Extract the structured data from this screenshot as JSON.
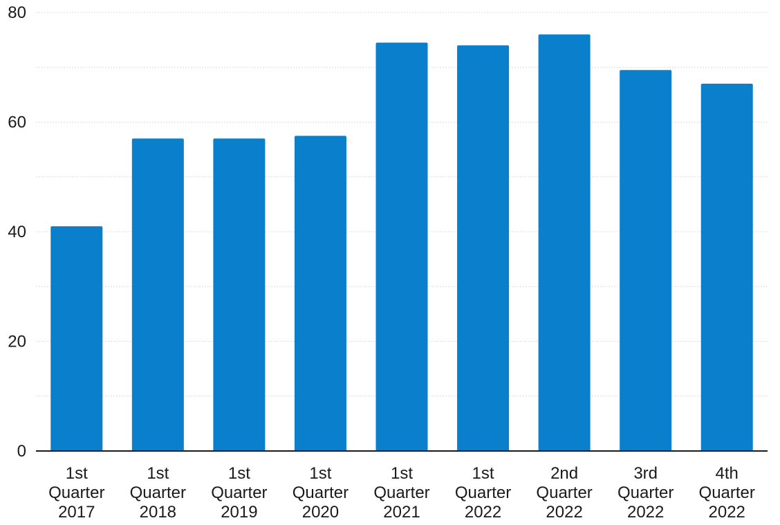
{
  "chart_data": {
    "type": "bar",
    "categories": [
      [
        "1st",
        "Quarter",
        "2017"
      ],
      [
        "1st",
        "Quarter",
        "2018"
      ],
      [
        "1st",
        "Quarter",
        "2019"
      ],
      [
        "1st",
        "Quarter",
        "2020"
      ],
      [
        "1st",
        "Quarter",
        "2021"
      ],
      [
        "1st",
        "Quarter",
        "2022"
      ],
      [
        "2nd",
        "Quarter",
        "2022"
      ],
      [
        "3rd",
        "Quarter",
        "2022"
      ],
      [
        "4th",
        "Quarter",
        "2022"
      ]
    ],
    "values": [
      41,
      57,
      57,
      57.5,
      74.5,
      74,
      76,
      69.5,
      67
    ],
    "title": "",
    "xlabel": "",
    "ylabel": "",
    "ylim": [
      0,
      80
    ],
    "yticks": [
      0,
      20,
      40,
      60,
      80
    ],
    "grid": true,
    "bar_color": "#0a7fcb"
  }
}
